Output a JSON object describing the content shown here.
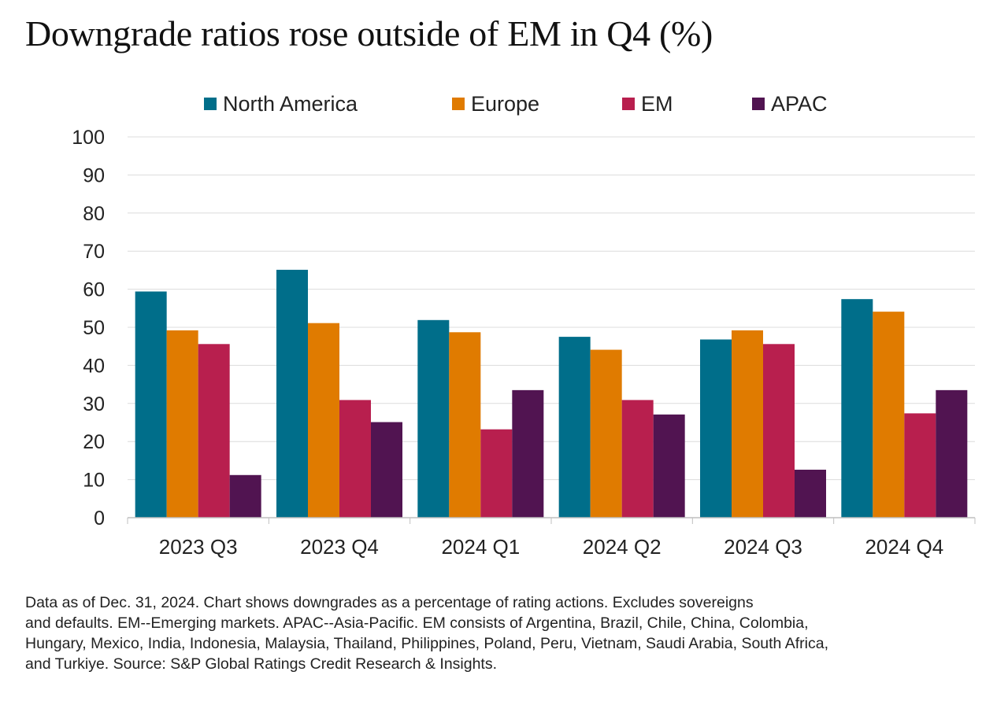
{
  "title": "Downgrade ratios rose outside of EM in Q4 (%)",
  "footnote": "Data as of Dec. 31, 2024. Chart shows downgrades as a percentage of rating actions. Excludes sovereigns\n and defaults. EM--Emerging markets. APAC--Asia-Pacific. EM consists of Argentina, Brazil, Chile, China, Colombia,\nHungary, Mexico, India, Indonesia, Malaysia, Thailand, Philippines, Poland, Peru, Vietnam, Saudi Arabia, South Africa,\nand Turkiye. Source: S&P Global Ratings Credit Research & Insights.",
  "colors": {
    "north_america": "#006e8a",
    "europe": "#e07b00",
    "em": "#b81f4e",
    "apac": "#511451",
    "grid": "#dcdcdc",
    "axis": "#bfbfbf"
  },
  "chart_data": {
    "type": "bar",
    "title": "Downgrade ratios rose outside of EM in Q4 (%)",
    "xlabel": "",
    "ylabel": "",
    "ylim": [
      0,
      100
    ],
    "yticks": [
      0,
      10,
      20,
      30,
      40,
      50,
      60,
      70,
      80,
      90,
      100
    ],
    "grid": true,
    "legend_position": "top",
    "categories": [
      "2023 Q3",
      "2023 Q4",
      "2024 Q1",
      "2024 Q2",
      "2024 Q3",
      "2024 Q4"
    ],
    "series": [
      {
        "name": "North America",
        "color": "#006e8a",
        "values": [
          59.4,
          65.1,
          51.9,
          47.5,
          46.8,
          57.4
        ]
      },
      {
        "name": "Europe",
        "color": "#e07b00",
        "values": [
          49.2,
          51.1,
          48.7,
          44.1,
          49.2,
          54.1
        ]
      },
      {
        "name": "EM",
        "color": "#b81f4e",
        "values": [
          45.6,
          30.9,
          23.2,
          30.9,
          45.6,
          27.4
        ]
      },
      {
        "name": "APAC",
        "color": "#511451",
        "values": [
          11.2,
          25.1,
          33.5,
          27.1,
          12.6,
          33.5
        ]
      }
    ]
  }
}
